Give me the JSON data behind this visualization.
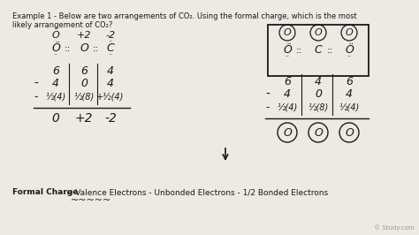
{
  "background_color": "#ede9e3",
  "text_color": "#1a1a1a",
  "title_line1": "Example 1 - Below are two arrangements of CO₂. Using the formal charge, which is the most",
  "title_line2": "likely arrangement of CO₂?",
  "watermark": "© Study.com",
  "formula_bold": "Formal Charge",
  "formula_rest": " = Valence Electrons - Unbonded Electrons - 1/2 Bonded Electrons"
}
